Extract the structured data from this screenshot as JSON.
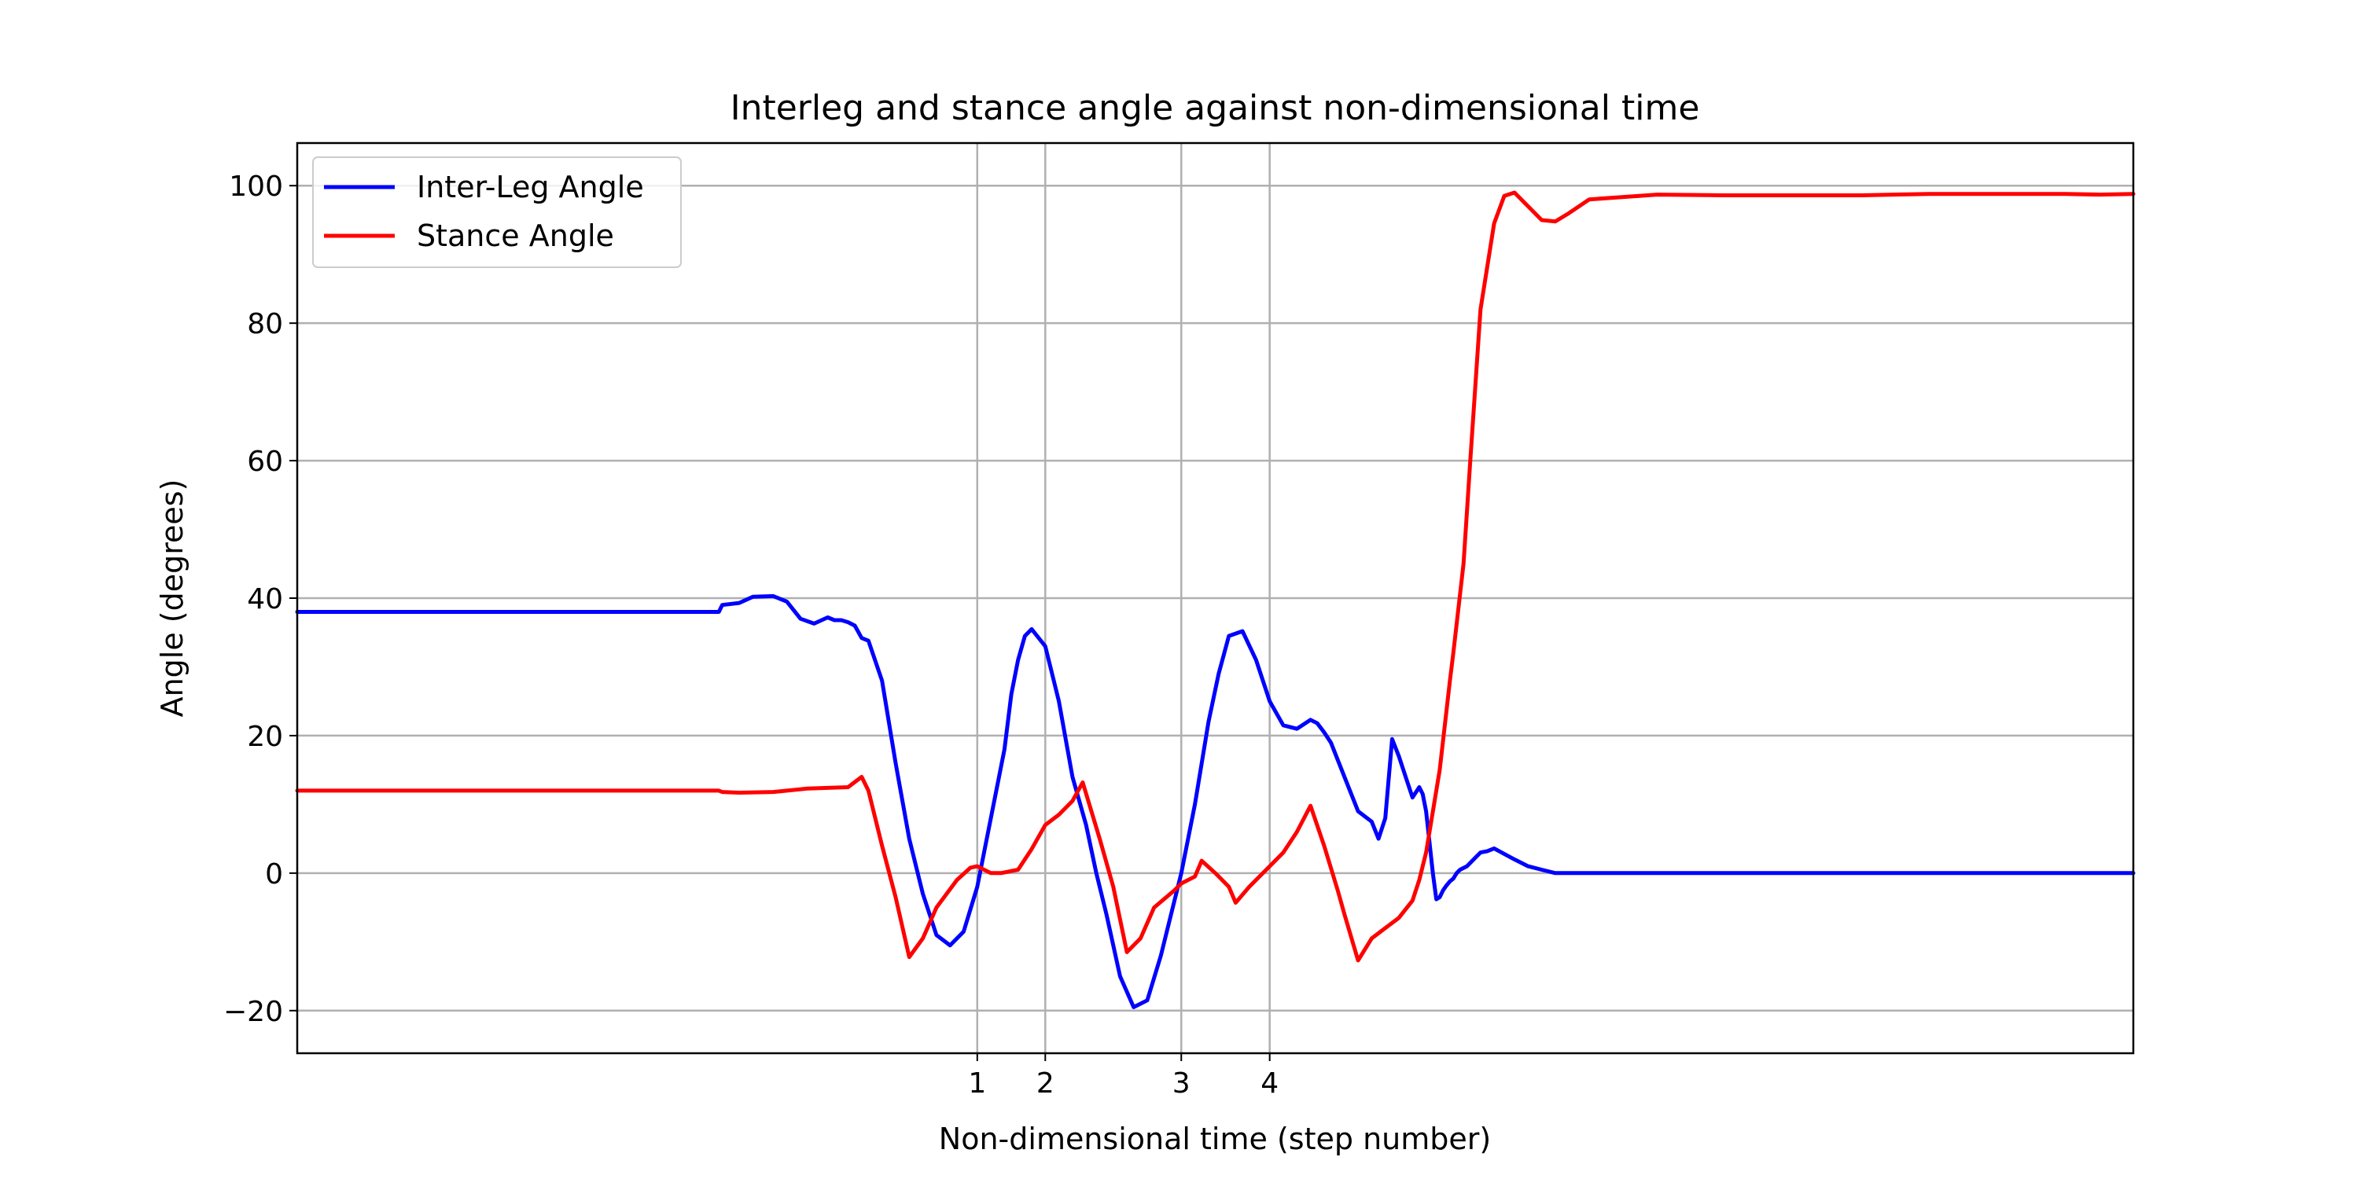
{
  "chart_data": {
    "type": "line",
    "title": "Interleg and stance angle against non-dimensional time",
    "xlabel": "Non-dimensional time (step number)",
    "ylabel": "Angle (degrees)",
    "xlim": [
      0,
      27
    ],
    "ylim": [
      -26.2,
      106.2
    ],
    "x_ticks": [
      {
        "value": 10.0,
        "label": "1"
      },
      {
        "value": 11.0,
        "label": "2"
      },
      {
        "value": 13.0,
        "label": "3"
      },
      {
        "value": 14.3,
        "label": "4"
      }
    ],
    "y_ticks": [
      {
        "value": -20,
        "label": "−20"
      },
      {
        "value": 0,
        "label": "0"
      },
      {
        "value": 20,
        "label": "20"
      },
      {
        "value": 40,
        "label": "40"
      },
      {
        "value": 60,
        "label": "60"
      },
      {
        "value": 80,
        "label": "80"
      },
      {
        "value": 100,
        "label": "100"
      }
    ],
    "grid": true,
    "legend_position": "top-left",
    "series": [
      {
        "name": "Inter-Leg Angle",
        "color": "#0000ff",
        "x": [
          0,
          6.2,
          6.25,
          6.5,
          6.7,
          7.0,
          7.2,
          7.4,
          7.6,
          7.8,
          7.9,
          8.0,
          8.1,
          8.2,
          8.3,
          8.4,
          8.6,
          8.8,
          9.0,
          9.2,
          9.4,
          9.6,
          9.8,
          10.0,
          10.2,
          10.4,
          10.5,
          10.6,
          10.7,
          10.8,
          11.0,
          11.2,
          11.4,
          11.6,
          11.75,
          11.9,
          12.1,
          12.3,
          12.5,
          12.7,
          12.9,
          13.0,
          13.2,
          13.4,
          13.55,
          13.7,
          13.9,
          14.1,
          14.3,
          14.5,
          14.7,
          14.9,
          15.0,
          15.1,
          15.2,
          15.4,
          15.6,
          15.8,
          15.9,
          16.0,
          16.1,
          16.2,
          16.3,
          16.4,
          16.5,
          16.55,
          16.6,
          16.7,
          16.75,
          16.8,
          16.85,
          16.9,
          16.95,
          17.0,
          17.05,
          17.1,
          17.2,
          17.3,
          17.4,
          17.5,
          17.6,
          17.75,
          17.9,
          18.0,
          18.1,
          18.3,
          18.5,
          19.0,
          19.5,
          20,
          22,
          24,
          25,
          26,
          27
        ],
        "y": [
          38,
          38,
          39,
          39.3,
          40.2,
          40.3,
          39.5,
          37,
          36.3,
          37.2,
          36.8,
          36.8,
          36.5,
          36,
          34.2,
          33.8,
          28,
          16,
          5,
          -3,
          -9,
          -10.5,
          -8.5,
          -2,
          8,
          18,
          26,
          31,
          34.5,
          35.5,
          33,
          25,
          14,
          7,
          0,
          -6,
          -15,
          -19.5,
          -18.5,
          -12,
          -4,
          0,
          10,
          22,
          29,
          34.5,
          35.2,
          31,
          25,
          21.5,
          21,
          22.3,
          21.8,
          20.5,
          19,
          14,
          9,
          7.5,
          5,
          8,
          19.5,
          17,
          14,
          11,
          12.5,
          11.5,
          9,
          0,
          -3.8,
          -3.5,
          -2.5,
          -1.8,
          -1.2,
          -0.8,
          0,
          0.5,
          1,
          2,
          3,
          3.2,
          3.6,
          2.8,
          2,
          1.5,
          1,
          0.5,
          0,
          0,
          0,
          0,
          0,
          0,
          0,
          0,
          0
        ]
      },
      {
        "name": "Stance Angle",
        "color": "#ff0000",
        "x": [
          0,
          6.2,
          6.25,
          6.5,
          7.0,
          7.5,
          8.1,
          8.3,
          8.4,
          8.6,
          8.8,
          9.0,
          9.2,
          9.4,
          9.7,
          9.9,
          10.0,
          10.2,
          10.35,
          10.6,
          10.8,
          11.0,
          11.2,
          11.4,
          11.55,
          11.8,
          12.0,
          12.2,
          12.4,
          12.6,
          12.9,
          13.0,
          13.2,
          13.3,
          13.5,
          13.7,
          13.8,
          14.0,
          14.3,
          14.5,
          14.7,
          14.9,
          15.1,
          15.3,
          15.4,
          15.6,
          15.8,
          16.0,
          16.2,
          16.4,
          16.5,
          16.6,
          16.8,
          16.95,
          17.0,
          17.15,
          17.25,
          17.4,
          17.6,
          17.75,
          17.9,
          18.1,
          18.3,
          18.5,
          18.7,
          19.0,
          20,
          21,
          22,
          23,
          24,
          25,
          26,
          26.5,
          27
        ],
        "y": [
          12,
          12,
          11.8,
          11.7,
          11.8,
          12.3,
          12.5,
          14,
          12,
          4,
          -3.5,
          -12.2,
          -9.5,
          -5,
          -1,
          0.8,
          1,
          0,
          0,
          0.5,
          3.5,
          7,
          8.5,
          10.5,
          13.2,
          5,
          -2,
          -11.5,
          -9.5,
          -5,
          -2.5,
          -1.5,
          -0.5,
          1.8,
          0,
          -2,
          -4.3,
          -2,
          1,
          3,
          6,
          9.8,
          4,
          -2.5,
          -6,
          -12.7,
          -9.5,
          -8,
          -6.5,
          -4,
          -1,
          3,
          15,
          28,
          32,
          45,
          60,
          82,
          94.5,
          98.5,
          99,
          97,
          95,
          94.8,
          96,
          98,
          98.7,
          98.6,
          98.6,
          98.6,
          98.8,
          98.8,
          98.8,
          98.7,
          98.8
        ]
      }
    ]
  }
}
